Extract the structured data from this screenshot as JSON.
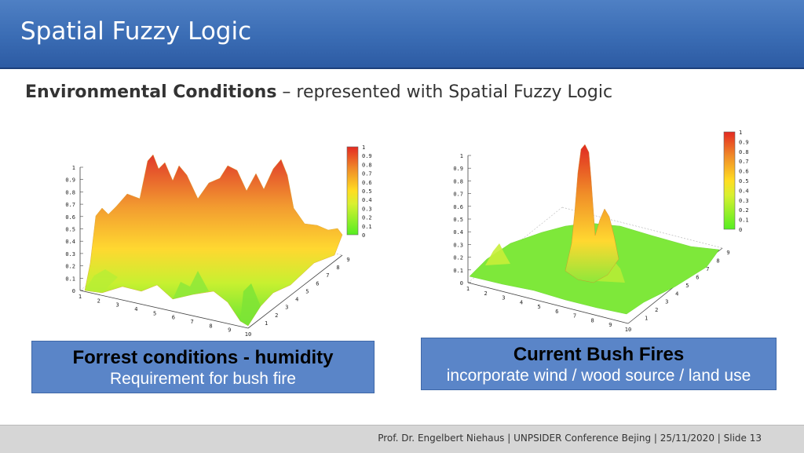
{
  "slide": {
    "title": "Spatial Fuzzy Logic",
    "subtitle_bold": "Environmental Conditions",
    "subtitle_rest": " – represented with Spatial Fuzzy Logic"
  },
  "left_plot": {
    "colorbar": [
      "1",
      "0.9",
      "0.8",
      "0.7",
      "0.6",
      "0.5",
      "0.4",
      "0.3",
      "0.2",
      "0.1",
      "0"
    ],
    "z_ticks": [
      "1",
      "0.9",
      "0.8",
      "0.7",
      "0.6",
      "0.5",
      "0.4",
      "0.3",
      "0.2",
      "0.1",
      "0"
    ],
    "x_ticks": [
      "1",
      "2",
      "3",
      "4",
      "5",
      "6",
      "7",
      "8",
      "9",
      "10"
    ],
    "y_ticks": [
      "1",
      "2",
      "3",
      "4",
      "5",
      "6",
      "7",
      "8",
      "9"
    ]
  },
  "right_plot": {
    "colorbar": [
      "1",
      "0.9",
      "0.8",
      "0.7",
      "0.6",
      "0.5",
      "0.4",
      "0.3",
      "0.2",
      "0.1",
      "0"
    ],
    "z_ticks": [
      "1",
      "0.9",
      "0.8",
      "0.7",
      "0.6",
      "0.5",
      "0.4",
      "0.3",
      "0.2",
      "0.1",
      "0"
    ],
    "x_ticks": [
      "1",
      "2",
      "3",
      "4",
      "5",
      "6",
      "7",
      "8",
      "9",
      "10"
    ],
    "y_ticks": [
      "1",
      "2",
      "3",
      "4",
      "5",
      "6",
      "7",
      "8",
      "9"
    ]
  },
  "captions": {
    "left_head": "Forrest conditions - humidity",
    "left_sub": "Requirement for bush fire",
    "right_head": "Current Bush Fires",
    "right_sub": "incorporate wind / wood source / land use"
  },
  "footer": {
    "text": "Prof. Dr. Engelbert Niehaus | UNPSIDER Conference Bejing | 25/11/2020 | Slide 13"
  }
}
